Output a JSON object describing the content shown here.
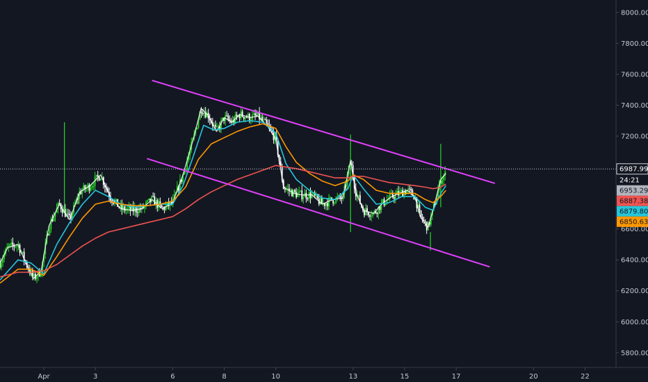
{
  "chart_data": {
    "type": "line",
    "symbol": "",
    "x_tick_labels": [
      "Apr",
      "3",
      "6",
      "8",
      "10",
      "13",
      "15",
      "17",
      "20",
      "22"
    ],
    "y_ticks": [
      5800,
      6000,
      6200,
      6400,
      6600,
      6800,
      7000,
      7200,
      7400,
      7600,
      7800,
      8000
    ],
    "y_tick_labels": [
      "5800.00",
      "6000.00",
      "6200.00",
      "6400.00",
      "6600.00",
      "6800.00",
      "7000.00",
      "7200.00",
      "7400.00",
      "7600.00",
      "7800.00",
      "8000.00"
    ],
    "ylim": [
      5705,
      8080
    ],
    "x_range_days": [
      -0.7,
      23.2
    ],
    "grid": false,
    "last_price": {
      "value": 6987.99,
      "label": "6987.99",
      "countdown": "24:21"
    },
    "indicator_tags": [
      {
        "label": "6953.29",
        "value": 6953.29,
        "color": "#b2b5be"
      },
      {
        "label": "6887.38",
        "value": 6887.38,
        "color": "#ef5350"
      },
      {
        "label": "6879.80",
        "value": 6879.8,
        "color": "#26c6da"
      },
      {
        "label": "6850.63",
        "value": 6850.63,
        "color": "#ff9800"
      }
    ],
    "series": [
      {
        "color": "#ffffff",
        "points": [
          [
            -0.7,
            6380
          ],
          [
            -0.4,
            6480
          ],
          [
            0,
            6500
          ],
          [
            0.3,
            6380
          ],
          [
            0.6,
            6280
          ],
          [
            0.9,
            6330
          ],
          [
            1.2,
            6620
          ],
          [
            1.6,
            6760
          ],
          [
            2,
            6660
          ],
          [
            2.4,
            6840
          ],
          [
            2.8,
            6880
          ],
          [
            3.2,
            6950
          ],
          [
            3.6,
            6800
          ],
          [
            4,
            6730
          ],
          [
            4.4,
            6720
          ],
          [
            4.8,
            6730
          ],
          [
            5.2,
            6790
          ],
          [
            5.6,
            6730
          ],
          [
            6,
            6770
          ],
          [
            6.4,
            6950
          ],
          [
            6.8,
            7180
          ],
          [
            7.1,
            7380
          ],
          [
            7.4,
            7330
          ],
          [
            7.7,
            7230
          ],
          [
            8,
            7320
          ],
          [
            8.3,
            7290
          ],
          [
            8.6,
            7340
          ],
          [
            9,
            7320
          ],
          [
            9.3,
            7330
          ],
          [
            9.7,
            7260
          ],
          [
            10,
            7180
          ],
          [
            10.3,
            6870
          ],
          [
            10.7,
            6830
          ],
          [
            11,
            6820
          ],
          [
            11.4,
            6820
          ],
          [
            11.8,
            6760
          ],
          [
            12.2,
            6790
          ],
          [
            12.6,
            6800
          ],
          [
            12.9,
            7040
          ],
          [
            13.1,
            6840
          ],
          [
            13.4,
            6720
          ],
          [
            13.8,
            6700
          ],
          [
            14.1,
            6760
          ],
          [
            14.5,
            6810
          ],
          [
            14.8,
            6830
          ],
          [
            15.1,
            6850
          ],
          [
            15.4,
            6810
          ],
          [
            15.6,
            6680
          ],
          [
            15.9,
            6610
          ],
          [
            16.1,
            6720
          ],
          [
            16.4,
            6920
          ],
          [
            16.6,
            6960
          ]
        ]
      },
      {
        "color": "#26c6da",
        "points": [
          [
            -0.7,
            6270
          ],
          [
            0,
            6400
          ],
          [
            0.5,
            6380
          ],
          [
            1,
            6310
          ],
          [
            1.5,
            6500
          ],
          [
            2,
            6640
          ],
          [
            2.5,
            6760
          ],
          [
            3,
            6850
          ],
          [
            3.5,
            6810
          ],
          [
            4,
            6760
          ],
          [
            4.5,
            6740
          ],
          [
            5,
            6750
          ],
          [
            5.5,
            6760
          ],
          [
            6,
            6760
          ],
          [
            6.4,
            6880
          ],
          [
            6.8,
            7070
          ],
          [
            7.2,
            7270
          ],
          [
            7.6,
            7240
          ],
          [
            8,
            7250
          ],
          [
            8.5,
            7290
          ],
          [
            9,
            7300
          ],
          [
            9.5,
            7290
          ],
          [
            10,
            7220
          ],
          [
            10.4,
            7020
          ],
          [
            10.8,
            6920
          ],
          [
            11.3,
            6850
          ],
          [
            11.8,
            6800
          ],
          [
            12.3,
            6790
          ],
          [
            12.8,
            6860
          ],
          [
            13,
            6950
          ],
          [
            13.4,
            6860
          ],
          [
            13.9,
            6760
          ],
          [
            14.4,
            6770
          ],
          [
            14.9,
            6810
          ],
          [
            15.4,
            6810
          ],
          [
            15.8,
            6740
          ],
          [
            16.1,
            6720
          ],
          [
            16.4,
            6830
          ],
          [
            16.6,
            6880
          ]
        ]
      },
      {
        "color": "#ff9800",
        "points": [
          [
            -0.7,
            6250
          ],
          [
            0,
            6340
          ],
          [
            0.5,
            6340
          ],
          [
            1,
            6300
          ],
          [
            1.5,
            6420
          ],
          [
            2,
            6550
          ],
          [
            2.5,
            6670
          ],
          [
            3,
            6760
          ],
          [
            3.5,
            6780
          ],
          [
            4,
            6760
          ],
          [
            4.5,
            6750
          ],
          [
            5,
            6750
          ],
          [
            5.5,
            6760
          ],
          [
            6,
            6780
          ],
          [
            6.5,
            6870
          ],
          [
            7,
            7050
          ],
          [
            7.5,
            7150
          ],
          [
            8,
            7190
          ],
          [
            8.5,
            7230
          ],
          [
            9,
            7260
          ],
          [
            9.5,
            7280
          ],
          [
            10,
            7250
          ],
          [
            10.4,
            7130
          ],
          [
            10.8,
            7030
          ],
          [
            11.3,
            6960
          ],
          [
            11.8,
            6910
          ],
          [
            12.3,
            6880
          ],
          [
            12.8,
            6910
          ],
          [
            13,
            6950
          ],
          [
            13.4,
            6920
          ],
          [
            13.9,
            6850
          ],
          [
            14.4,
            6830
          ],
          [
            14.9,
            6830
          ],
          [
            15.4,
            6830
          ],
          [
            15.8,
            6790
          ],
          [
            16.1,
            6770
          ],
          [
            16.4,
            6810
          ],
          [
            16.6,
            6850
          ]
        ]
      },
      {
        "color": "#ef5350",
        "points": [
          [
            -0.7,
            6290
          ],
          [
            0,
            6320
          ],
          [
            0.5,
            6320
          ],
          [
            1,
            6330
          ],
          [
            1.5,
            6370
          ],
          [
            2,
            6430
          ],
          [
            2.5,
            6490
          ],
          [
            3,
            6540
          ],
          [
            3.5,
            6580
          ],
          [
            4,
            6600
          ],
          [
            4.5,
            6620
          ],
          [
            5,
            6640
          ],
          [
            5.5,
            6660
          ],
          [
            6,
            6680
          ],
          [
            6.5,
            6730
          ],
          [
            7,
            6790
          ],
          [
            7.5,
            6840
          ],
          [
            8,
            6880
          ],
          [
            8.5,
            6920
          ],
          [
            9,
            6950
          ],
          [
            9.5,
            6980
          ],
          [
            10,
            7010
          ],
          [
            10.4,
            7000
          ],
          [
            10.8,
            6990
          ],
          [
            11.3,
            6970
          ],
          [
            11.8,
            6950
          ],
          [
            12.3,
            6930
          ],
          [
            12.8,
            6930
          ],
          [
            13,
            6940
          ],
          [
            13.4,
            6940
          ],
          [
            13.9,
            6920
          ],
          [
            14.4,
            6900
          ],
          [
            14.9,
            6890
          ],
          [
            15.4,
            6880
          ],
          [
            15.8,
            6870
          ],
          [
            16.1,
            6860
          ],
          [
            16.4,
            6870
          ],
          [
            16.6,
            6890
          ]
        ]
      }
    ],
    "trend_lines": [
      {
        "color": "#e040fb",
        "points": [
          [
            5.2,
            7560
          ],
          [
            18.5,
            6895
          ]
        ]
      },
      {
        "color": "#e040fb",
        "points": [
          [
            5.0,
            7055
          ],
          [
            18.3,
            6355
          ]
        ]
      }
    ],
    "candle_spikes": [
      {
        "day": 1.8,
        "high": 7290,
        "low": 6700
      },
      {
        "day": 16.0,
        "high": 6580,
        "low": 6460
      },
      {
        "day": 12.9,
        "high": 7210,
        "low": 6580
      },
      {
        "day": 16.4,
        "high": 7150,
        "low": 6740
      }
    ]
  }
}
